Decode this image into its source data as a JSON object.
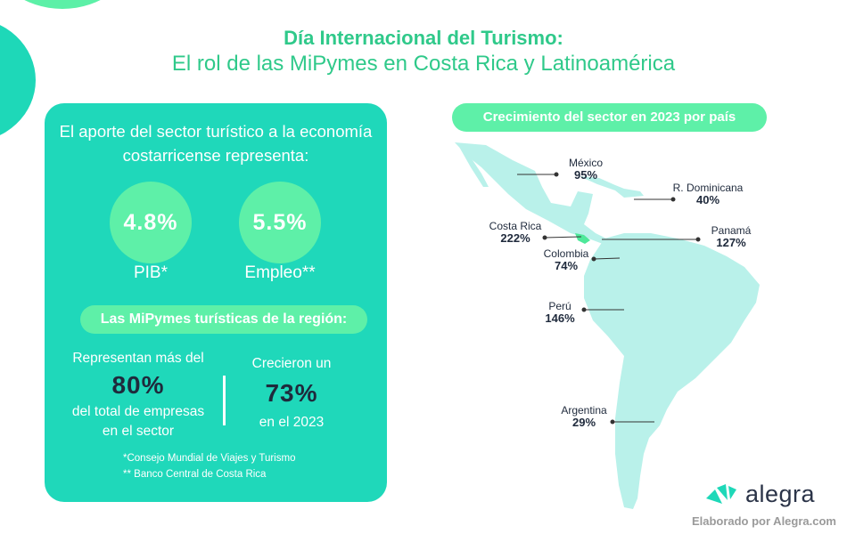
{
  "header": {
    "title": "Día Internacional del Turismo:",
    "subtitle": "El rol de las MiPymes en Costa Rica y Latinoamérica"
  },
  "panel": {
    "intro": "El aporte del sector turístico a la economía costarricense representa:",
    "indicators": [
      {
        "value": "4.8%",
        "label": "PIB*"
      },
      {
        "value": "5.5%",
        "label": "Empleo**"
      }
    ],
    "region_title": "Las MiPymes turísticas de la región:",
    "stat1": {
      "pre": "Representan más del",
      "value": "80%",
      "post": "del total de empresas en el sector"
    },
    "stat2": {
      "pre": "Crecieron un",
      "value": "73%",
      "post": "en el 2023"
    },
    "notes": [
      "*Consejo Mundial de Viajes y Turismo",
      "** Banco Central de Costa Rica"
    ]
  },
  "map": {
    "title": "Crecimiento del sector en 2023 por país",
    "countries": [
      {
        "name": "México",
        "value": "95%"
      },
      {
        "name": "R. Dominicana",
        "value": "40%"
      },
      {
        "name": "Costa Rica",
        "value": "222%"
      },
      {
        "name": "Panamá",
        "value": "127%"
      },
      {
        "name": "Colombia",
        "value": "74%"
      },
      {
        "name": "Perú",
        "value": "146%"
      },
      {
        "name": "Argentina",
        "value": "29%"
      }
    ],
    "colors": {
      "land": "#b9f1ea",
      "highlight": "#4ee89a"
    }
  },
  "footer": {
    "logo": "alegra",
    "credit": "Elaborado por Alegra.com"
  },
  "colors": {
    "title": "#2fc98a",
    "panel": "#1fd8ba",
    "accent": "#5ef0a8",
    "dark": "#1f2a3c"
  }
}
